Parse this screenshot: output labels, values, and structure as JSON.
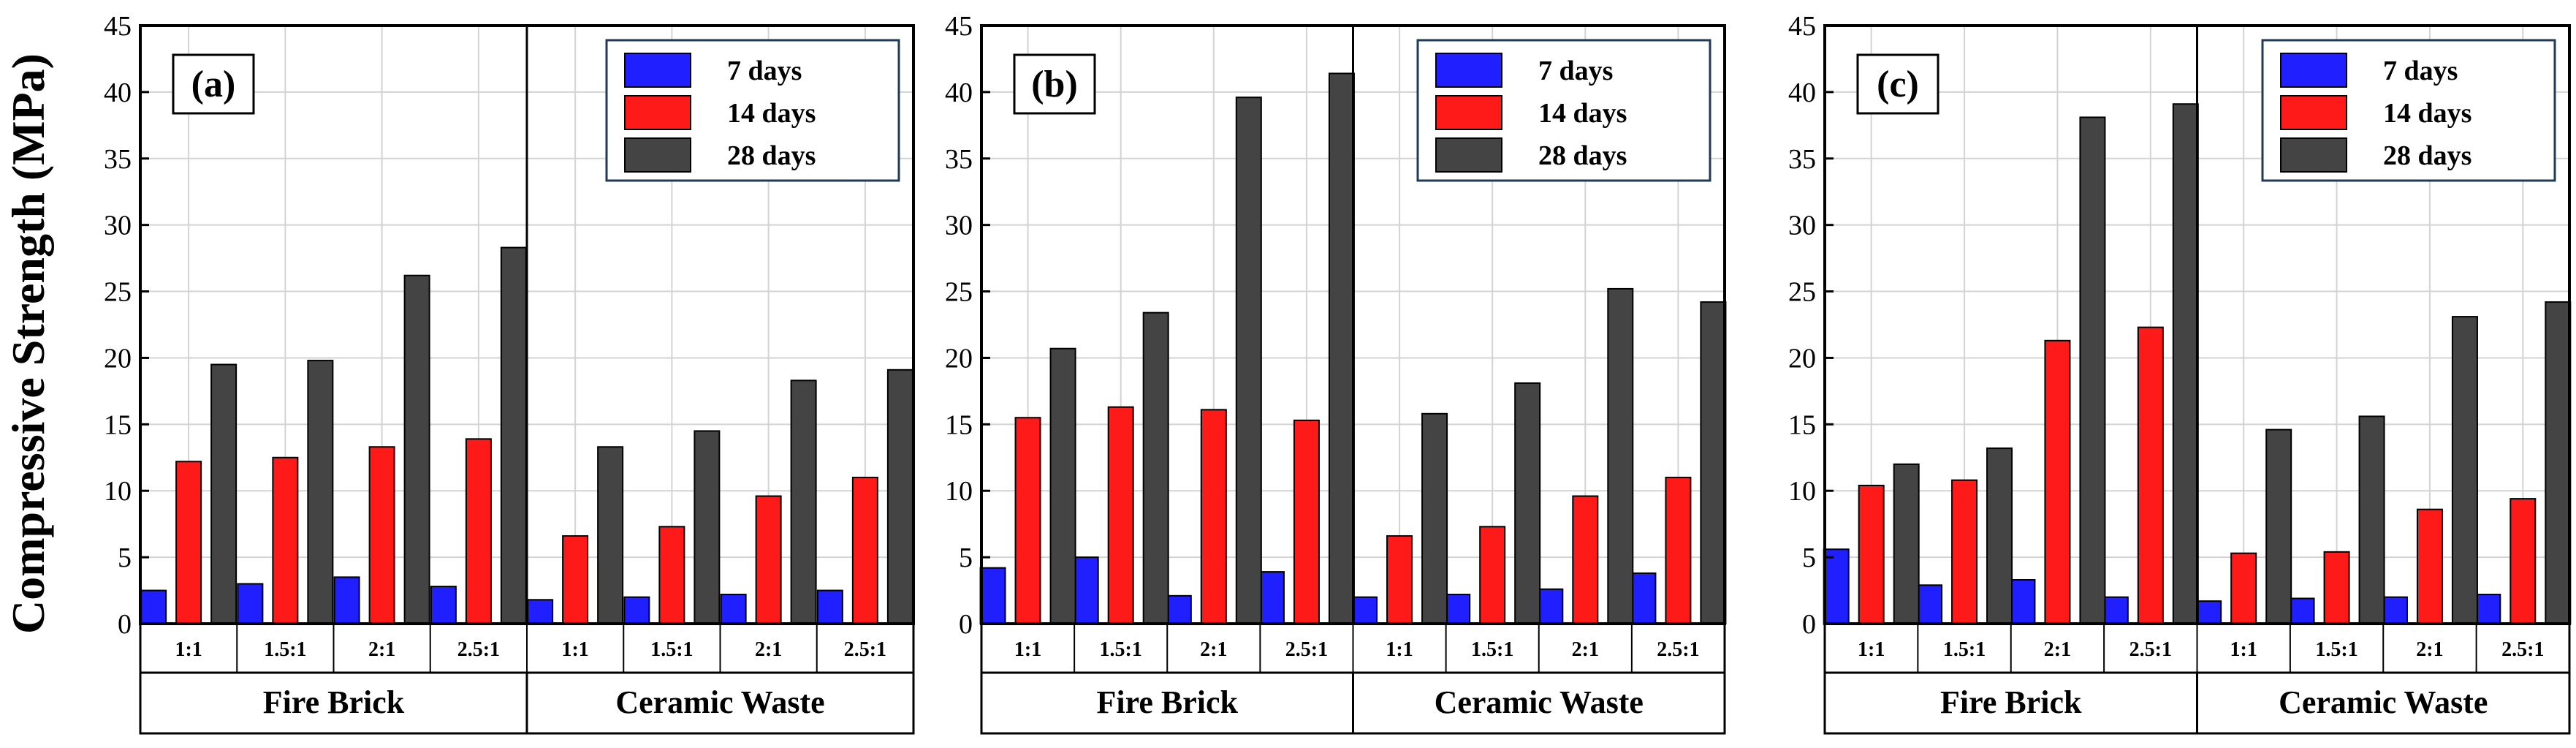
{
  "figure": {
    "ylabel": "Compressive Strength (MPa)",
    "colors": {
      "7 days": "#1f1fff",
      "14 days": "#ff1a1a",
      "28 days": "#444444"
    }
  },
  "chart_data": [
    {
      "type": "bar",
      "title": "(a)",
      "ylabel": "Compressive Strength (MPa)",
      "ylim": [
        0,
        45
      ],
      "yticks": [
        0,
        5,
        10,
        15,
        20,
        25,
        30,
        35,
        40,
        45
      ],
      "grid": true,
      "legend": "top-right",
      "groups": [
        "Fire Brick",
        "Ceramic Waste"
      ],
      "categories": [
        "1:1",
        "1.5:1",
        "2:1",
        "2.5:1",
        "1:1",
        "1.5:1",
        "2:1",
        "2.5:1"
      ],
      "series": [
        {
          "name": "7 days",
          "values": [
            2.5,
            3.0,
            3.5,
            2.8,
            1.8,
            2.0,
            2.2,
            2.5
          ]
        },
        {
          "name": "14 days",
          "values": [
            12.2,
            12.5,
            13.3,
            13.9,
            6.6,
            7.3,
            9.6,
            11.0
          ]
        },
        {
          "name": "28 days",
          "values": [
            19.5,
            19.8,
            26.2,
            28.3,
            13.3,
            14.5,
            18.3,
            19.1
          ]
        }
      ]
    },
    {
      "type": "bar",
      "title": "(b)",
      "ylim": [
        0,
        45
      ],
      "yticks": [
        0,
        5,
        10,
        15,
        20,
        25,
        30,
        35,
        40,
        45
      ],
      "grid": true,
      "legend": "top-right",
      "groups": [
        "Fire Brick",
        "Ceramic Waste"
      ],
      "categories": [
        "1:1",
        "1.5:1",
        "2:1",
        "2.5:1",
        "1:1",
        "1.5:1",
        "2:1",
        "2.5:1"
      ],
      "series": [
        {
          "name": "7 days",
          "values": [
            4.2,
            5.0,
            2.1,
            3.9,
            2.0,
            2.2,
            2.6,
            3.8
          ]
        },
        {
          "name": "14 days",
          "values": [
            15.5,
            16.3,
            16.1,
            15.3,
            6.6,
            7.3,
            9.6,
            11.0
          ]
        },
        {
          "name": "28 days",
          "values": [
            20.7,
            23.4,
            39.6,
            41.4,
            15.8,
            18.1,
            25.2,
            24.2
          ]
        }
      ]
    },
    {
      "type": "bar",
      "title": "(c)",
      "ylim": [
        0,
        45
      ],
      "yticks": [
        0,
        5,
        10,
        15,
        20,
        25,
        30,
        35,
        40,
        45
      ],
      "grid": true,
      "legend": "top-right",
      "groups": [
        "Fire Brick",
        "Ceramic Waste"
      ],
      "categories": [
        "1:1",
        "1.5:1",
        "2:1",
        "2.5:1",
        "1:1",
        "1.5:1",
        "2:1",
        "2.5:1"
      ],
      "series": [
        {
          "name": "7 days",
          "values": [
            5.6,
            2.9,
            3.3,
            2.0,
            1.7,
            1.9,
            2.0,
            2.2
          ]
        },
        {
          "name": "14 days",
          "values": [
            10.4,
            10.8,
            21.3,
            22.3,
            5.3,
            5.4,
            8.6,
            9.4
          ]
        },
        {
          "name": "28 days",
          "values": [
            12.0,
            13.2,
            38.1,
            39.1,
            14.6,
            15.6,
            23.1,
            24.2
          ]
        }
      ]
    }
  ]
}
